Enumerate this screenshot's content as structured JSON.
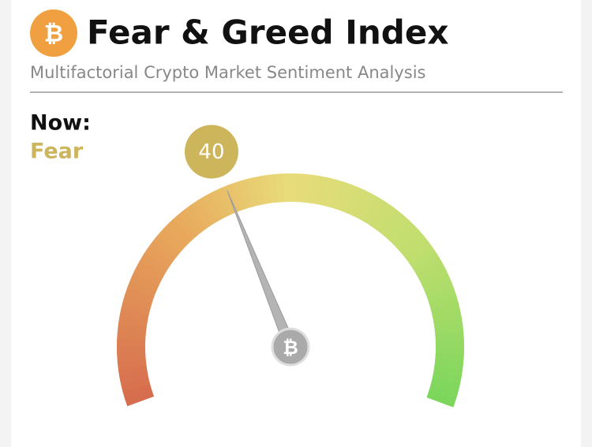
{
  "chart_data": {
    "type": "gauge",
    "title": "Fear & Greed Index",
    "subtitle": "Multifactorial Crypto Market Sentiment Analysis",
    "label": "Now:",
    "classification": "Fear",
    "value": 40,
    "color": "#cdb55c",
    "ylim": [
      0,
      100
    ]
  }
}
